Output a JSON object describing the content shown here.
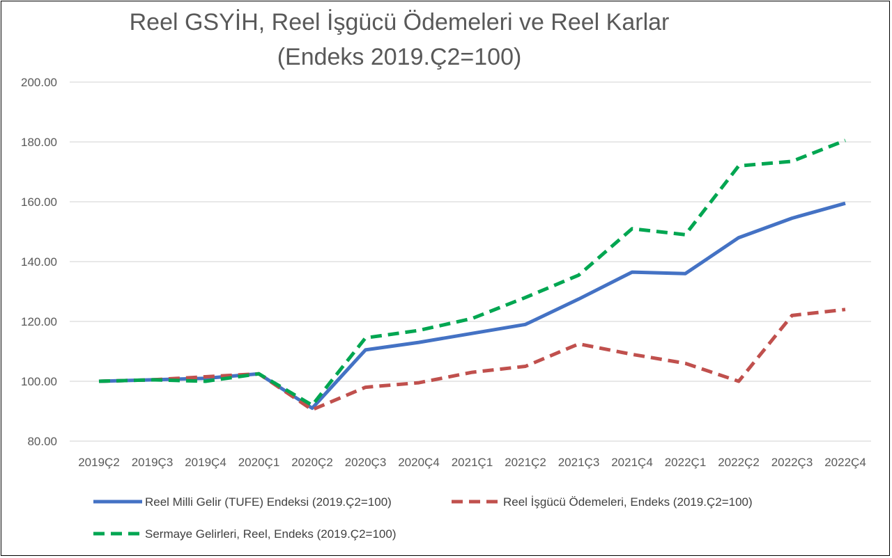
{
  "chart_data": {
    "type": "line",
    "title_line1": "Reel GSYİH, Reel İşgücü Ödemeleri ve Reel Karlar",
    "title_line2": "(Endeks 2019.Ç2=100)",
    "categories": [
      "2019Ç2",
      "2019Ç3",
      "2019Ç4",
      "2020Ç1",
      "2020Ç2",
      "2020Ç3",
      "2020Ç4",
      "2021Ç1",
      "2021Ç2",
      "2021Ç3",
      "2021Ç4",
      "2022Ç1",
      "2022Ç2",
      "2022Ç3",
      "2022Ç4"
    ],
    "ylim": [
      80,
      200
    ],
    "yticks": [
      "80.00",
      "100.00",
      "120.00",
      "140.00",
      "160.00",
      "180.00",
      "200.00"
    ],
    "ytick_values": [
      80,
      100,
      120,
      140,
      160,
      180,
      200
    ],
    "grid": true,
    "legend_position": "bottom",
    "series": [
      {
        "name": "Reel Milli Gelir (TUFE) Endeksi (2019.Ç2=100)",
        "color": "#4472C4",
        "style": "solid",
        "values": [
          100,
          100.5,
          101,
          102.5,
          91,
          110.5,
          113,
          116,
          119,
          127.5,
          136.5,
          136,
          148,
          154.5,
          159.5
        ]
      },
      {
        "name": "Reel İşgücü Ödemeleri, Endeks (2019.Ç2=100)",
        "color": "#C0504D",
        "style": "dashed",
        "values": [
          100,
          100.5,
          101.5,
          102.5,
          90.5,
          98,
          99.5,
          103,
          105,
          112.5,
          109,
          106,
          100,
          122,
          124
        ]
      },
      {
        "name": "Sermaye Gelirleri, Reel, Endeks  (2019.Ç2=100)",
        "color": "#00A651",
        "style": "dashed",
        "values": [
          100,
          100.5,
          100,
          102.5,
          92,
          114.5,
          117,
          121,
          128,
          135.5,
          151,
          149,
          172,
          173.5,
          180.5
        ]
      }
    ]
  }
}
